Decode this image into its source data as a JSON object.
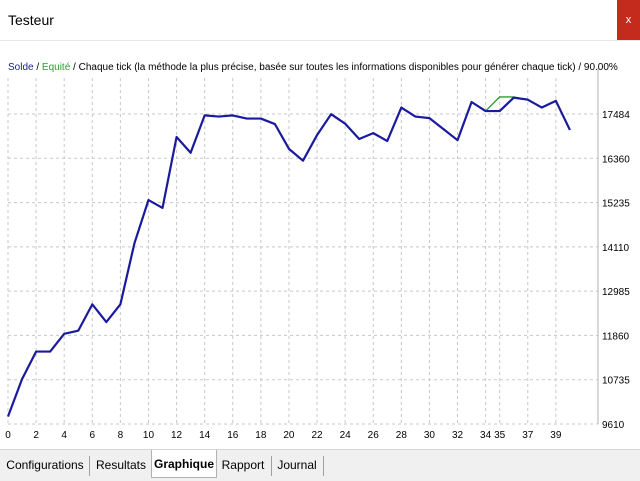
{
  "window": {
    "title": "Testeur",
    "close_label": "x"
  },
  "legend": {
    "solde": "Solde",
    "sep": " / ",
    "equite": "Equité",
    "rest": " / Chaque tick (la méthode la plus précise, basée sur toutes les informations disponibles pour générer chaque tick) / 90.00%"
  },
  "tabs": [
    {
      "label": "Configurations",
      "active": false
    },
    {
      "label": "Resultats",
      "active": false
    },
    {
      "label": "Graphique",
      "active": true
    },
    {
      "label": "Rapport",
      "active": false
    },
    {
      "label": "Journal",
      "active": false
    }
  ],
  "colors": {
    "solde": "#1a1a9e",
    "equite": "#2e9e2e",
    "grid": "#c8c8c8"
  },
  "chart_data": {
    "type": "line",
    "x_ticks": [
      "0",
      "2",
      "4",
      "6",
      "8",
      "10",
      "12",
      "14",
      "16",
      "18",
      "20",
      "22",
      "24",
      "26",
      "28",
      "30",
      "32",
      "34",
      "35",
      "37",
      "39"
    ],
    "y_ticks": [
      "9610",
      "10735",
      "11860",
      "12985",
      "14110",
      "15235",
      "16360",
      "17484"
    ],
    "ylim": [
      9610,
      18400
    ],
    "xlim": [
      0,
      42
    ],
    "grid": true,
    "series": [
      {
        "name": "Solde",
        "x": [
          0,
          1,
          2,
          3,
          4,
          5,
          6,
          7,
          8,
          9,
          10,
          11,
          12,
          13,
          14,
          15,
          16,
          17,
          18,
          19,
          20,
          21,
          22,
          23,
          24,
          25,
          26,
          27,
          28,
          29,
          30,
          31,
          32,
          33,
          34,
          35,
          36,
          37,
          38,
          39,
          40
        ],
        "y": [
          9800,
          10750,
          11450,
          11450,
          11900,
          11980,
          12650,
          12200,
          12650,
          14200,
          15300,
          15100,
          16900,
          16500,
          17450,
          17420,
          17450,
          17370,
          17370,
          17230,
          16600,
          16300,
          16950,
          17480,
          17240,
          16850,
          17000,
          16800,
          17650,
          17420,
          17380,
          17100,
          16820,
          17790,
          17560,
          17560,
          17900,
          17850,
          17650,
          17820,
          17080
        ]
      },
      {
        "name": "Equité",
        "x": [
          0,
          1,
          2,
          3,
          4,
          5,
          6,
          7,
          8,
          9,
          10,
          11,
          12,
          13,
          14,
          15,
          16,
          17,
          18,
          19,
          20,
          21,
          22,
          23,
          24,
          25,
          26,
          27,
          28,
          29,
          30,
          31,
          32,
          33,
          34,
          35,
          36,
          37,
          38,
          39,
          40
        ],
        "y": [
          9800,
          10750,
          11450,
          11450,
          11900,
          11980,
          12650,
          12200,
          12650,
          14200,
          15300,
          15100,
          16900,
          16500,
          17450,
          17420,
          17450,
          17370,
          17370,
          17230,
          16600,
          16300,
          16950,
          17480,
          17240,
          16850,
          17000,
          16800,
          17650,
          17420,
          17380,
          17100,
          16820,
          17790,
          17560,
          17920,
          17920,
          17850,
          17650,
          17820,
          17080
        ]
      }
    ]
  }
}
